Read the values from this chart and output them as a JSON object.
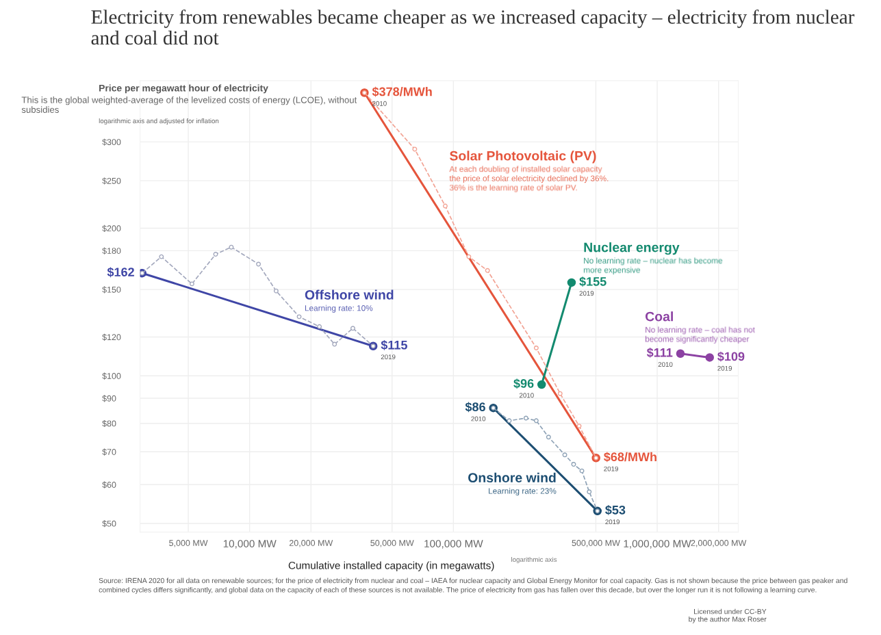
{
  "chart_data": {
    "type": "line",
    "title": "Electricity from renewables became cheaper as we increased capacity – electricity from nuclear and coal did not",
    "subtitle": "This is the global weighted-average of the levelized costs of energy (LCOE), without subsidies",
    "ylabel": "Price per megawatt hour of electricity",
    "xlabel": "Cumulative installed capacity (in megawatts)",
    "log": "xy",
    "grid": true,
    "legend": false,
    "xlim": [
      2900,
      2500000
    ],
    "xticks": [
      {
        "value": 5000,
        "label": "5,000 MW"
      },
      {
        "value": 10000,
        "label": "10,000 MW"
      },
      {
        "value": 20000,
        "label": "20,000 MW"
      },
      {
        "value": 50000,
        "label": "50,000 MW"
      },
      {
        "value": 100000,
        "label": "100,000 MW"
      },
      {
        "value": 500000,
        "label": "500,000 MW"
      },
      {
        "value": 1000000,
        "label": "1,000,000 MW"
      },
      {
        "value": 2000000,
        "label": "2,000,000 MW"
      }
    ],
    "ylim": [
      48,
      400
    ],
    "yticks": [
      {
        "value": 50,
        "label": "$50"
      },
      {
        "value": 60,
        "label": "$60"
      },
      {
        "value": 70,
        "label": "$70"
      },
      {
        "value": 80,
        "label": "$80"
      },
      {
        "value": 90,
        "label": "$90"
      },
      {
        "value": 100,
        "label": "$100"
      },
      {
        "value": 120,
        "label": "$120"
      },
      {
        "value": 150,
        "label": "$150"
      },
      {
        "value": 180,
        "label": "$180"
      },
      {
        "value": 200,
        "label": "$200"
      },
      {
        "value": 250,
        "label": "$250"
      },
      {
        "value": 300,
        "label": "$300"
      }
    ],
    "series": [
      {
        "name": "Offshore wind",
        "color": "#3f46a6",
        "x": [
          2970,
          40400
        ],
        "values": [
          162,
          115
        ],
        "value_labels": [
          "$162",
          "$115"
        ],
        "marker": "circle",
        "line_style": "solid"
      },
      {
        "color": "#a3a8bd",
        "x": [
          2970,
          3690,
          5210,
          6810,
          8130,
          11050,
          13490,
          17500,
          22000,
          26100,
          32100,
          40400
        ],
        "values": [
          162,
          175,
          154,
          177,
          183,
          169,
          149,
          132,
          126,
          116,
          125,
          115
        ],
        "marker": "circle",
        "line_style": "dashed"
      },
      {
        "name": "Solar Photovoltaic (PV)",
        "color": "#e5553c",
        "x": [
          36600,
          501000
        ],
        "values": [
          378,
          68
        ],
        "value_labels": [
          "$378/MWh",
          "$68/MWh"
        ],
        "marker": "circle",
        "line_style": "solid"
      },
      {
        "color": "#f2a394",
        "x": [
          36600,
          64600,
          91200,
          119000,
          147000,
          255000,
          334000,
          414000,
          501000
        ],
        "values": [
          378,
          290,
          222,
          175,
          164,
          114,
          92,
          79,
          68
        ],
        "marker": "circle",
        "line_style": "dashed"
      },
      {
        "name": "Nuclear energy",
        "color": "#138a6f",
        "x": [
          271000,
          380000
        ],
        "values": [
          96,
          155
        ],
        "value_labels": [
          "$96",
          "$155"
        ],
        "marker": "circle",
        "line_style": "solid"
      },
      {
        "name": "Onshore wind",
        "color": "#1d4e72",
        "x": [
          157000,
          509000
        ],
        "values": [
          86,
          53
        ],
        "value_labels": [
          "$86",
          "$53"
        ],
        "marker": "circle",
        "line_style": "solid"
      },
      {
        "color": "#8ea2b6",
        "x": [
          157000,
          188000,
          227000,
          255000,
          293000,
          352000,
          389000,
          427000,
          464000,
          509000
        ],
        "values": [
          86,
          81,
          82,
          81,
          75,
          69,
          66,
          64,
          58,
          53
        ],
        "marker": "circle",
        "line_style": "dashed"
      },
      {
        "name": "Coal",
        "color": "#8c42a3",
        "x": [
          1300000,
          1810000
        ],
        "values": [
          111,
          109
        ],
        "value_labels": [
          "$111",
          "$109"
        ],
        "marker": "circle",
        "line_style": "solid"
      }
    ],
    "annotations": [
      {
        "text": "2019",
        "x": 40400,
        "y": 115
      },
      {
        "text": "2010",
        "x": 36600,
        "y": 378
      },
      {
        "text": "2019",
        "x": 501000,
        "y": 68
      },
      {
        "text": "2010",
        "x": 271000,
        "y": 96
      },
      {
        "text": "2019",
        "x": 380000,
        "y": 155
      },
      {
        "text": "2010",
        "x": 157000,
        "y": 86
      },
      {
        "text": "2019",
        "x": 509000,
        "y": 53
      },
      {
        "text": "2010",
        "x": 1300000,
        "y": 111
      },
      {
        "text": "2019",
        "x": 1810000,
        "y": 109
      },
      "At each doubling of installed solar capacity\nthe price of solar electricity declined by 36%.\n36% is the learning rate of solar PV.",
      "No learning rate – nuclear has become\nmore expensive",
      "Learning rate: 10%",
      "No learning rate – coal has not\nbecome significantly cheaper",
      "Learning rate: 23%",
      "logarithmic axis and adjusted for inflation",
      "logarithmic axis",
      "Source: IRENA 2020 for all data on renewable sources; for the price of electricity from nuclear and coal – IAEA for nuclear capacity and Global Energy Monitor for coal capacity. Gas is not shown because the price between gas peaker and combined cycles differs significantly, and global data on the capacity of each of these sources is not available. The price of electricity from gas has fallen over this decade, but over the longer run it is not following a learning curve.",
      "Licensed under CC-BY\nby the author Max Roser"
    ]
  }
}
